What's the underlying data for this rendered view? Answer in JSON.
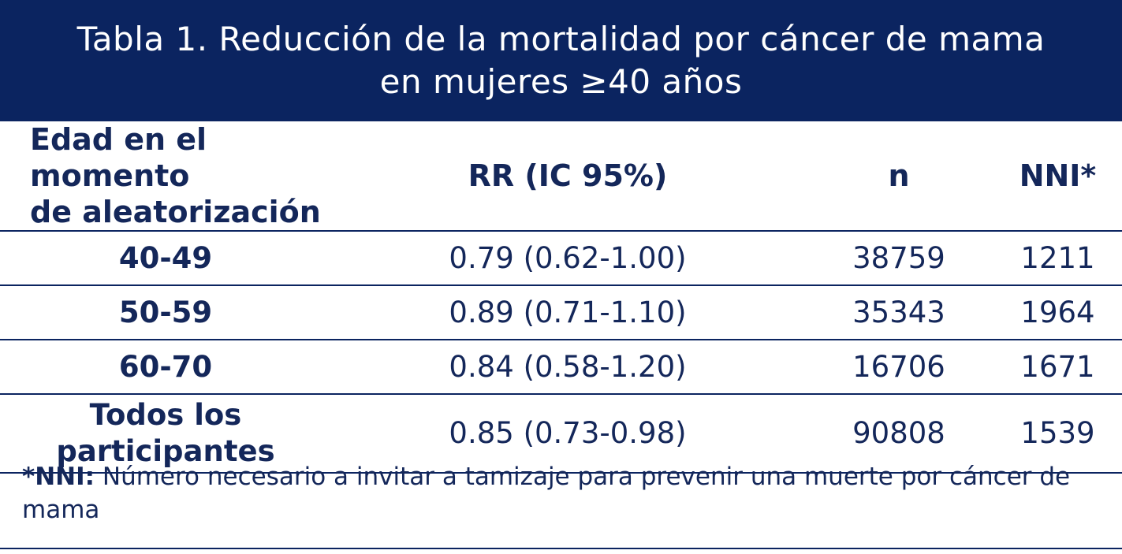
{
  "title": {
    "line1": "Tabla 1. Reducción de la mortalidad por cáncer de mama",
    "line2": "en mujeres ≥40 años"
  },
  "table": {
    "headers": [
      {
        "line1": "Edad en el momento",
        "line2": "de aleatorización"
      },
      {
        "line1": "RR (IC 95%)"
      },
      {
        "line1": "n"
      },
      {
        "line1": "NNI*"
      }
    ],
    "rows": [
      {
        "group_line1": "40-49",
        "group_line2": "",
        "rr": "0.79 (0.62-1.00)",
        "n": "38759",
        "nni": "1211"
      },
      {
        "group_line1": "50-59",
        "group_line2": "",
        "rr": "0.89 (0.71-1.10)",
        "n": "35343",
        "nni": "1964"
      },
      {
        "group_line1": "60-70",
        "group_line2": "",
        "rr": "0.84 (0.58-1.20)",
        "n": "16706",
        "nni": "1671"
      },
      {
        "group_line1": "Todos los",
        "group_line2": "participantes",
        "rr": "0.85 (0.73-0.98)",
        "n": "90808",
        "nni": "1539"
      }
    ]
  },
  "footnote": {
    "key": "*NNI:",
    "text": " Número necesario a invitar a tamizaje para prevenir una muerte por cáncer de mama"
  },
  "colors": {
    "brand_navy": "#0b2460",
    "text_navy": "#14275a",
    "background": "#ffffff"
  }
}
